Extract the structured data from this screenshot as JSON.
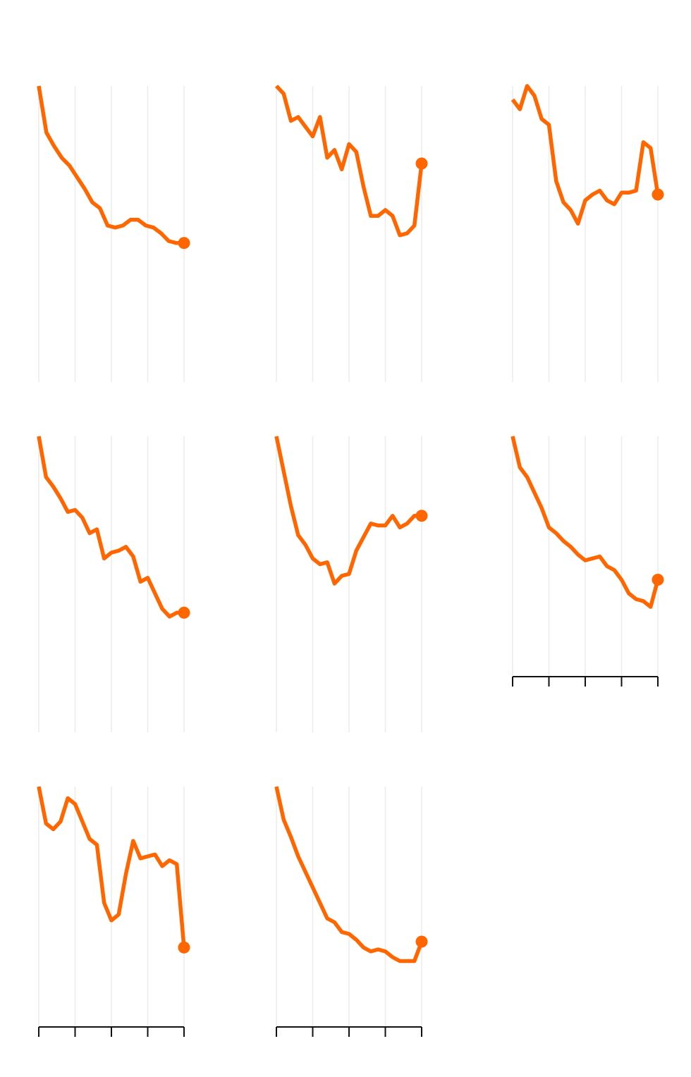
{
  "chart_data": {
    "type": "line",
    "layout": "small-multiples",
    "color": "#ff6600",
    "grid": true,
    "panels": [
      {
        "values": [
          100,
          76,
          69,
          63,
          59,
          53,
          47,
          40,
          37,
          28,
          27,
          28,
          31,
          31,
          28,
          27,
          24,
          20,
          19,
          19
        ]
      },
      {
        "values": [
          100,
          96,
          82,
          84,
          79,
          74,
          84,
          63,
          67,
          57,
          70,
          66,
          48,
          33,
          33,
          36,
          33,
          23,
          24,
          28,
          60
        ]
      },
      {
        "values": [
          93,
          88,
          100,
          95,
          83,
          80,
          51,
          40,
          36,
          29,
          41,
          44,
          46,
          41,
          39,
          45,
          45,
          46,
          71,
          68,
          44
        ]
      },
      {
        "values": [
          100,
          79,
          74,
          68,
          61,
          62,
          58,
          50,
          52,
          37,
          40,
          41,
          43,
          38,
          25,
          27,
          19,
          11,
          7,
          9,
          9
        ]
      },
      {
        "values": [
          100,
          82,
          64,
          49,
          44,
          37,
          34,
          35,
          24,
          28,
          29,
          41,
          48,
          55,
          54,
          54,
          59,
          53,
          55,
          59,
          59
        ]
      },
      {
        "values": [
          100,
          84,
          79,
          71,
          63,
          53,
          50,
          46,
          43,
          39,
          36,
          37,
          38,
          33,
          31,
          26,
          19,
          16,
          15,
          12,
          26
        ]
      },
      {
        "values": [
          100,
          81,
          78,
          82,
          94,
          91,
          82,
          73,
          70,
          40,
          31,
          34,
          55,
          72,
          63,
          64,
          65,
          59,
          62,
          60,
          17
        ]
      },
      {
        "values": [
          100,
          83,
          74,
          64,
          56,
          48,
          40,
          32,
          30,
          25,
          24,
          21,
          17,
          15,
          16,
          15,
          12,
          10,
          10,
          10,
          20
        ]
      }
    ],
    "axis_panels": [
      5,
      6,
      7
    ],
    "x_ticks": 5
  }
}
